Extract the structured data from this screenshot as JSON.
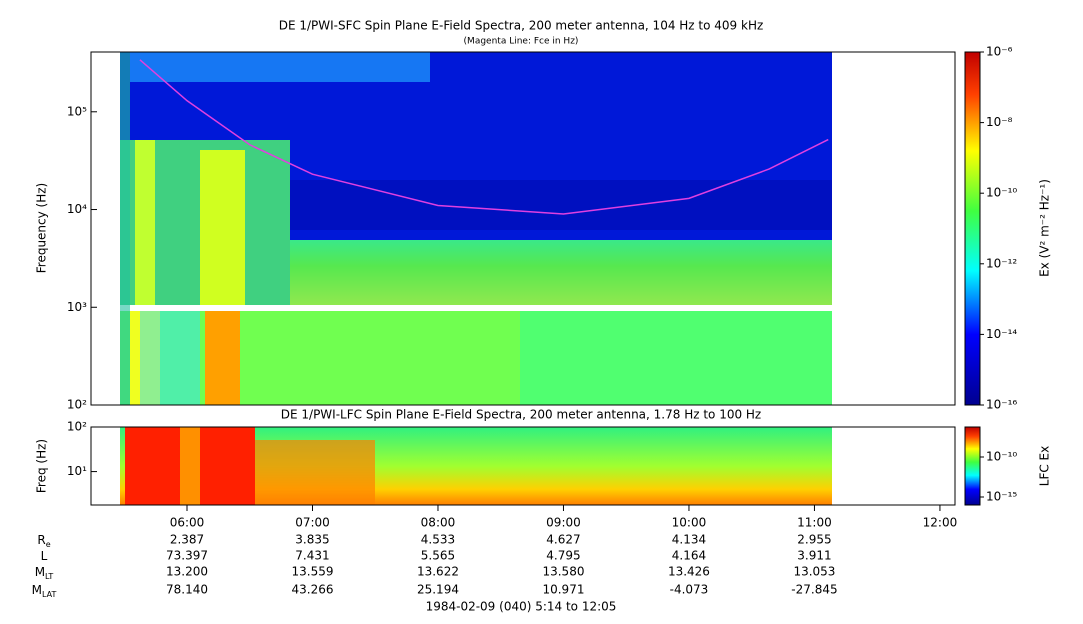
{
  "chart_data": [
    {
      "type": "spectrogram",
      "title": "DE 1/PWI-SFC  Spin Plane E-Field Spectra, 200 meter antenna, 104 Hz to 409 kHz",
      "subtitle": "(Magenta Line: Fce in Hz)",
      "y_label": "Frequency (Hz)",
      "log_y": true,
      "ylim": [
        100,
        409000
      ],
      "yticks": [
        {
          "value": 100,
          "label": "10²"
        },
        {
          "value": 1000,
          "label": "10³"
        },
        {
          "value": 10000,
          "label": "10⁴"
        },
        {
          "value": 100000,
          "label": "10⁵"
        }
      ],
      "colorbar": {
        "label": "Ex (V² m⁻² Hz⁻¹)",
        "log": true,
        "clim": [
          1e-16,
          1e-06
        ],
        "ticks": [
          {
            "value": 1e-16,
            "label": "10⁻¹⁶"
          },
          {
            "value": 1e-14,
            "label": "10⁻¹⁴"
          },
          {
            "value": 1e-12,
            "label": "10⁻¹²"
          },
          {
            "value": 1e-10,
            "label": "10⁻¹⁰"
          },
          {
            "value": 1e-08,
            "label": "10⁻⁸"
          },
          {
            "value": 1e-06,
            "label": "10⁻⁶"
          }
        ]
      },
      "series": [
        {
          "color": "#e040e0",
          "x": [
            5.625,
            6,
            6.5,
            7,
            8,
            9,
            10,
            10.64,
            11.11
          ],
          "values": [
            340000,
            130000,
            46000,
            23000,
            11000,
            9000,
            13000,
            26000,
            52000
          ]
        }
      ]
    },
    {
      "type": "spectrogram",
      "title": "DE 1/PWI-LFC  Spin Plane E-Field Spectra, 200 meter antenna, 1.78 Hz to 100 Hz",
      "y_label": "Freq (Hz)",
      "log_y": true,
      "ylim": [
        1.78,
        100
      ],
      "yticks": [
        {
          "value": 10,
          "label": "10¹"
        },
        {
          "value": 100,
          "label": "10²"
        }
      ],
      "colorbar": {
        "label": "LFC Ex",
        "log": true,
        "clim": [
          1e-16,
          5.6e-07
        ],
        "ticks": [
          {
            "value": 1e-15,
            "label": "10⁻¹⁵"
          },
          {
            "value": 1e-10,
            "label": "10⁻¹⁰"
          }
        ]
      }
    }
  ],
  "x_axis": {
    "xlim": [
      5.235,
      12.12
    ],
    "xticks": [
      {
        "value": 6,
        "label": "06:00"
      },
      {
        "value": 7,
        "label": "07:00"
      },
      {
        "value": 8,
        "label": "08:00"
      },
      {
        "value": 9,
        "label": "09:00"
      },
      {
        "value": 10,
        "label": "10:00"
      },
      {
        "value": 11,
        "label": "11:00"
      },
      {
        "value": 12,
        "label": "12:00"
      }
    ]
  },
  "ephemeris": [
    {
      "base": "R",
      "sub": "e",
      "values": [
        "2.387",
        "3.835",
        "4.533",
        "4.627",
        "4.134",
        "2.955"
      ]
    },
    {
      "base": "L",
      "sub": "",
      "values": [
        "73.397",
        "7.431",
        "5.565",
        "4.795",
        "4.164",
        "3.911"
      ]
    },
    {
      "base": "M",
      "sub": "LT",
      "values": [
        "13.200",
        "13.559",
        "13.622",
        "13.580",
        "13.426",
        "13.053"
      ]
    },
    {
      "base": "M",
      "sub": "LAT",
      "values": [
        "78.140",
        "43.266",
        "25.194",
        "10.971",
        "-4.073",
        "-27.845"
      ]
    }
  ],
  "footer": "1984-02-09 (040) 5:14 to 12:05"
}
